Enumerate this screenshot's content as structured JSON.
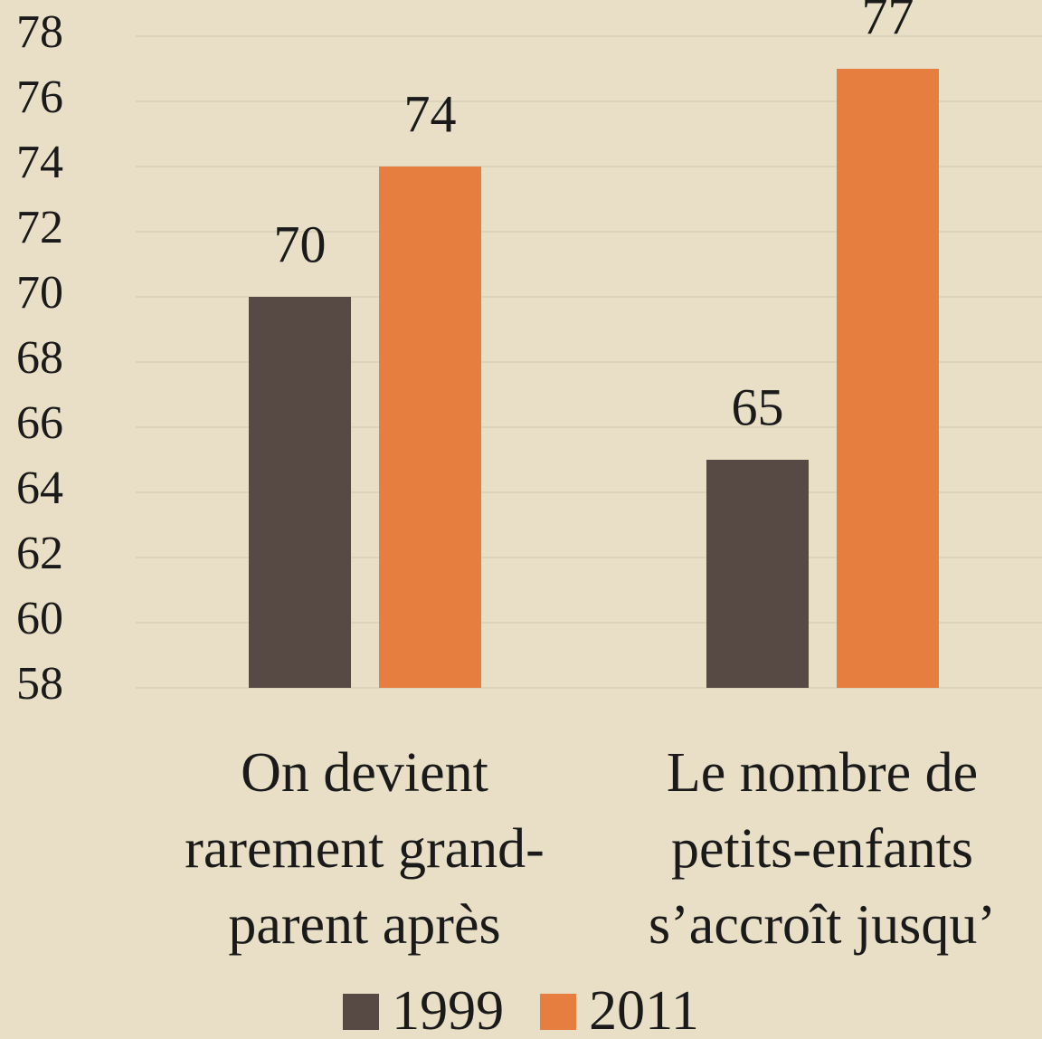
{
  "chart_data": {
    "type": "bar",
    "categories": [
      "On devient rarement grand-parent après",
      "Le nombre de petits-enfants s’accroît jusqu’"
    ],
    "series": [
      {
        "name": "1999",
        "color": "#574a44",
        "values": [
          70,
          65
        ]
      },
      {
        "name": "2011",
        "color": "#e57e3f",
        "values": [
          74,
          77
        ]
      }
    ],
    "ylim": [
      58,
      78
    ],
    "yticks": [
      58,
      60,
      62,
      64,
      66,
      68,
      70,
      72,
      74,
      76,
      78
    ],
    "grid": true,
    "legend": "bottom"
  }
}
